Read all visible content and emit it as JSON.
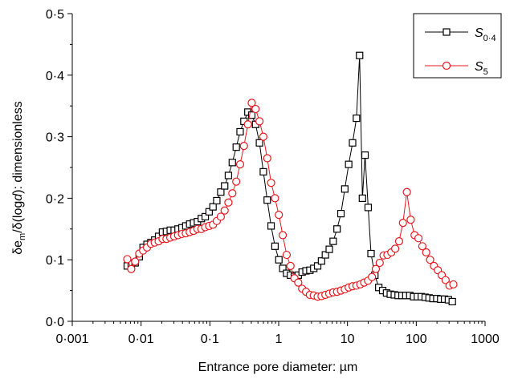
{
  "chart_data": {
    "type": "scatter",
    "xlabel": "Entrance pore diameter: µm",
    "ylabel": {
      "prefix": "δe",
      "sub": "m",
      "mid": "/δ(log",
      "var": "d",
      "suffix": "): dimensionless"
    },
    "xscale": "log",
    "xlim": [
      0.001,
      1000
    ],
    "ylim": [
      0,
      0.5
    ],
    "xticks": [
      {
        "value": 0.001,
        "label": "0·001"
      },
      {
        "value": 0.01,
        "label": "0·01"
      },
      {
        "value": 0.1,
        "label": "0·1"
      },
      {
        "value": 1,
        "label": "1"
      },
      {
        "value": 10,
        "label": "10"
      },
      {
        "value": 100,
        "label": "100"
      },
      {
        "value": 1000,
        "label": "1000"
      }
    ],
    "yticks": [
      {
        "value": 0,
        "label": "0·0"
      },
      {
        "value": 0.1,
        "label": "0·1"
      },
      {
        "value": 0.2,
        "label": "0·2"
      },
      {
        "value": 0.3,
        "label": "0·3"
      },
      {
        "value": 0.4,
        "label": "0·4"
      },
      {
        "value": 0.5,
        "label": "0·5"
      }
    ],
    "grid": false,
    "legend_position": "top-right",
    "series": [
      {
        "name": "S",
        "name_sub": "0·4",
        "color": "#000000",
        "marker": "square",
        "points": [
          [
            0.0063,
            0.09
          ],
          [
            0.0072,
            0.093
          ],
          [
            0.0082,
            0.095
          ],
          [
            0.0094,
            0.105
          ],
          [
            0.0107,
            0.12
          ],
          [
            0.0122,
            0.125
          ],
          [
            0.0139,
            0.128
          ],
          [
            0.0158,
            0.132
          ],
          [
            0.018,
            0.138
          ],
          [
            0.0205,
            0.145
          ],
          [
            0.0234,
            0.146
          ],
          [
            0.0266,
            0.148
          ],
          [
            0.0303,
            0.148
          ],
          [
            0.0345,
            0.15
          ],
          [
            0.0393,
            0.152
          ],
          [
            0.0447,
            0.155
          ],
          [
            0.0509,
            0.158
          ],
          [
            0.058,
            0.16
          ],
          [
            0.066,
            0.162
          ],
          [
            0.0752,
            0.167
          ],
          [
            0.0856,
            0.17
          ],
          [
            0.0975,
            0.178
          ],
          [
            0.111,
            0.186
          ],
          [
            0.126,
            0.196
          ],
          [
            0.144,
            0.21
          ],
          [
            0.164,
            0.22
          ],
          [
            0.186,
            0.237
          ],
          [
            0.212,
            0.258
          ],
          [
            0.242,
            0.283
          ],
          [
            0.275,
            0.308
          ],
          [
            0.313,
            0.325
          ],
          [
            0.357,
            0.34
          ],
          [
            0.406,
            0.335
          ],
          [
            0.462,
            0.32
          ],
          [
            0.526,
            0.29
          ],
          [
            0.599,
            0.243
          ],
          [
            0.682,
            0.197
          ],
          [
            0.776,
            0.155
          ],
          [
            0.884,
            0.122
          ],
          [
            1.006,
            0.1
          ],
          [
            1.146,
            0.086
          ],
          [
            1.305,
            0.078
          ],
          [
            1.486,
            0.075
          ],
          [
            1.692,
            0.073
          ],
          [
            1.926,
            0.075
          ],
          [
            2.193,
            0.08
          ],
          [
            2.497,
            0.082
          ],
          [
            2.843,
            0.083
          ],
          [
            3.237,
            0.086
          ],
          [
            3.686,
            0.09
          ],
          [
            4.197,
            0.098
          ],
          [
            4.779,
            0.108
          ],
          [
            5.441,
            0.117
          ],
          [
            6.196,
            0.13
          ],
          [
            7.055,
            0.15
          ],
          [
            8.033,
            0.175
          ],
          [
            9.146,
            0.215
          ],
          [
            10.414,
            0.255
          ],
          [
            11.858,
            0.29
          ],
          [
            13.5,
            0.33
          ],
          [
            15.0,
            0.432
          ],
          [
            16.5,
            0.2
          ],
          [
            18.0,
            0.27
          ],
          [
            20.0,
            0.185
          ],
          [
            22.0,
            0.11
          ],
          [
            25.0,
            0.075
          ],
          [
            28.5,
            0.055
          ],
          [
            32.5,
            0.05
          ],
          [
            37.0,
            0.046
          ],
          [
            42.0,
            0.044
          ],
          [
            48.0,
            0.043
          ],
          [
            54.5,
            0.042
          ],
          [
            62.0,
            0.042
          ],
          [
            70.5,
            0.042
          ],
          [
            80.5,
            0.042
          ],
          [
            91.5,
            0.04
          ],
          [
            104.0,
            0.04
          ],
          [
            118.5,
            0.04
          ],
          [
            135.0,
            0.039
          ],
          [
            153.5,
            0.038
          ],
          [
            175.0,
            0.037
          ],
          [
            199.0,
            0.037
          ],
          [
            226.5,
            0.036
          ],
          [
            258.0,
            0.036
          ],
          [
            293.5,
            0.035
          ],
          [
            334.0,
            0.032
          ]
        ]
      },
      {
        "name": "S",
        "name_sub": "5",
        "color": "#e8171d",
        "marker": "circle",
        "points": [
          [
            0.0063,
            0.101
          ],
          [
            0.0072,
            0.085
          ],
          [
            0.0082,
            0.097
          ],
          [
            0.0094,
            0.11
          ],
          [
            0.0107,
            0.115
          ],
          [
            0.0122,
            0.12
          ],
          [
            0.0139,
            0.126
          ],
          [
            0.0158,
            0.128
          ],
          [
            0.018,
            0.13
          ],
          [
            0.0205,
            0.134
          ],
          [
            0.0234,
            0.134
          ],
          [
            0.0266,
            0.136
          ],
          [
            0.0303,
            0.138
          ],
          [
            0.0345,
            0.14
          ],
          [
            0.0393,
            0.142
          ],
          [
            0.0447,
            0.143
          ],
          [
            0.0509,
            0.145
          ],
          [
            0.058,
            0.147
          ],
          [
            0.066,
            0.15
          ],
          [
            0.0752,
            0.15
          ],
          [
            0.0856,
            0.153
          ],
          [
            0.0975,
            0.155
          ],
          [
            0.111,
            0.157
          ],
          [
            0.126,
            0.163
          ],
          [
            0.144,
            0.17
          ],
          [
            0.164,
            0.18
          ],
          [
            0.186,
            0.193
          ],
          [
            0.212,
            0.208
          ],
          [
            0.242,
            0.227
          ],
          [
            0.275,
            0.255
          ],
          [
            0.313,
            0.285
          ],
          [
            0.357,
            0.32
          ],
          [
            0.406,
            0.355
          ],
          [
            0.462,
            0.345
          ],
          [
            0.526,
            0.325
          ],
          [
            0.599,
            0.3
          ],
          [
            0.682,
            0.265
          ],
          [
            0.776,
            0.225
          ],
          [
            0.884,
            0.2
          ],
          [
            1.006,
            0.173
          ],
          [
            1.146,
            0.14
          ],
          [
            1.305,
            0.108
          ],
          [
            1.486,
            0.09
          ],
          [
            1.692,
            0.07
          ],
          [
            1.926,
            0.063
          ],
          [
            2.193,
            0.053
          ],
          [
            2.497,
            0.048
          ],
          [
            2.843,
            0.043
          ],
          [
            3.237,
            0.042
          ],
          [
            3.686,
            0.04
          ],
          [
            4.197,
            0.041
          ],
          [
            4.779,
            0.043
          ],
          [
            5.441,
            0.045
          ],
          [
            6.196,
            0.047
          ],
          [
            7.055,
            0.048
          ],
          [
            8.033,
            0.05
          ],
          [
            9.146,
            0.052
          ],
          [
            10.414,
            0.055
          ],
          [
            11.858,
            0.057
          ],
          [
            13.5,
            0.058
          ],
          [
            15.37,
            0.06
          ],
          [
            17.5,
            0.063
          ],
          [
            19.92,
            0.066
          ],
          [
            22.68,
            0.072
          ],
          [
            25.82,
            0.085
          ],
          [
            29.4,
            0.095
          ],
          [
            33.47,
            0.107
          ],
          [
            38.11,
            0.108
          ],
          [
            43.39,
            0.112
          ],
          [
            49.4,
            0.118
          ],
          [
            56.25,
            0.13
          ],
          [
            64.04,
            0.16
          ],
          [
            72.9,
            0.21
          ],
          [
            83.0,
            0.165
          ],
          [
            94.5,
            0.14
          ],
          [
            107.6,
            0.135
          ],
          [
            122.5,
            0.122
          ],
          [
            139.5,
            0.112
          ],
          [
            158.8,
            0.1
          ],
          [
            180.8,
            0.09
          ],
          [
            205.9,
            0.083
          ],
          [
            234.4,
            0.075
          ],
          [
            266.9,
            0.067
          ],
          [
            303.9,
            0.058
          ],
          [
            346.0,
            0.06
          ]
        ]
      }
    ]
  }
}
